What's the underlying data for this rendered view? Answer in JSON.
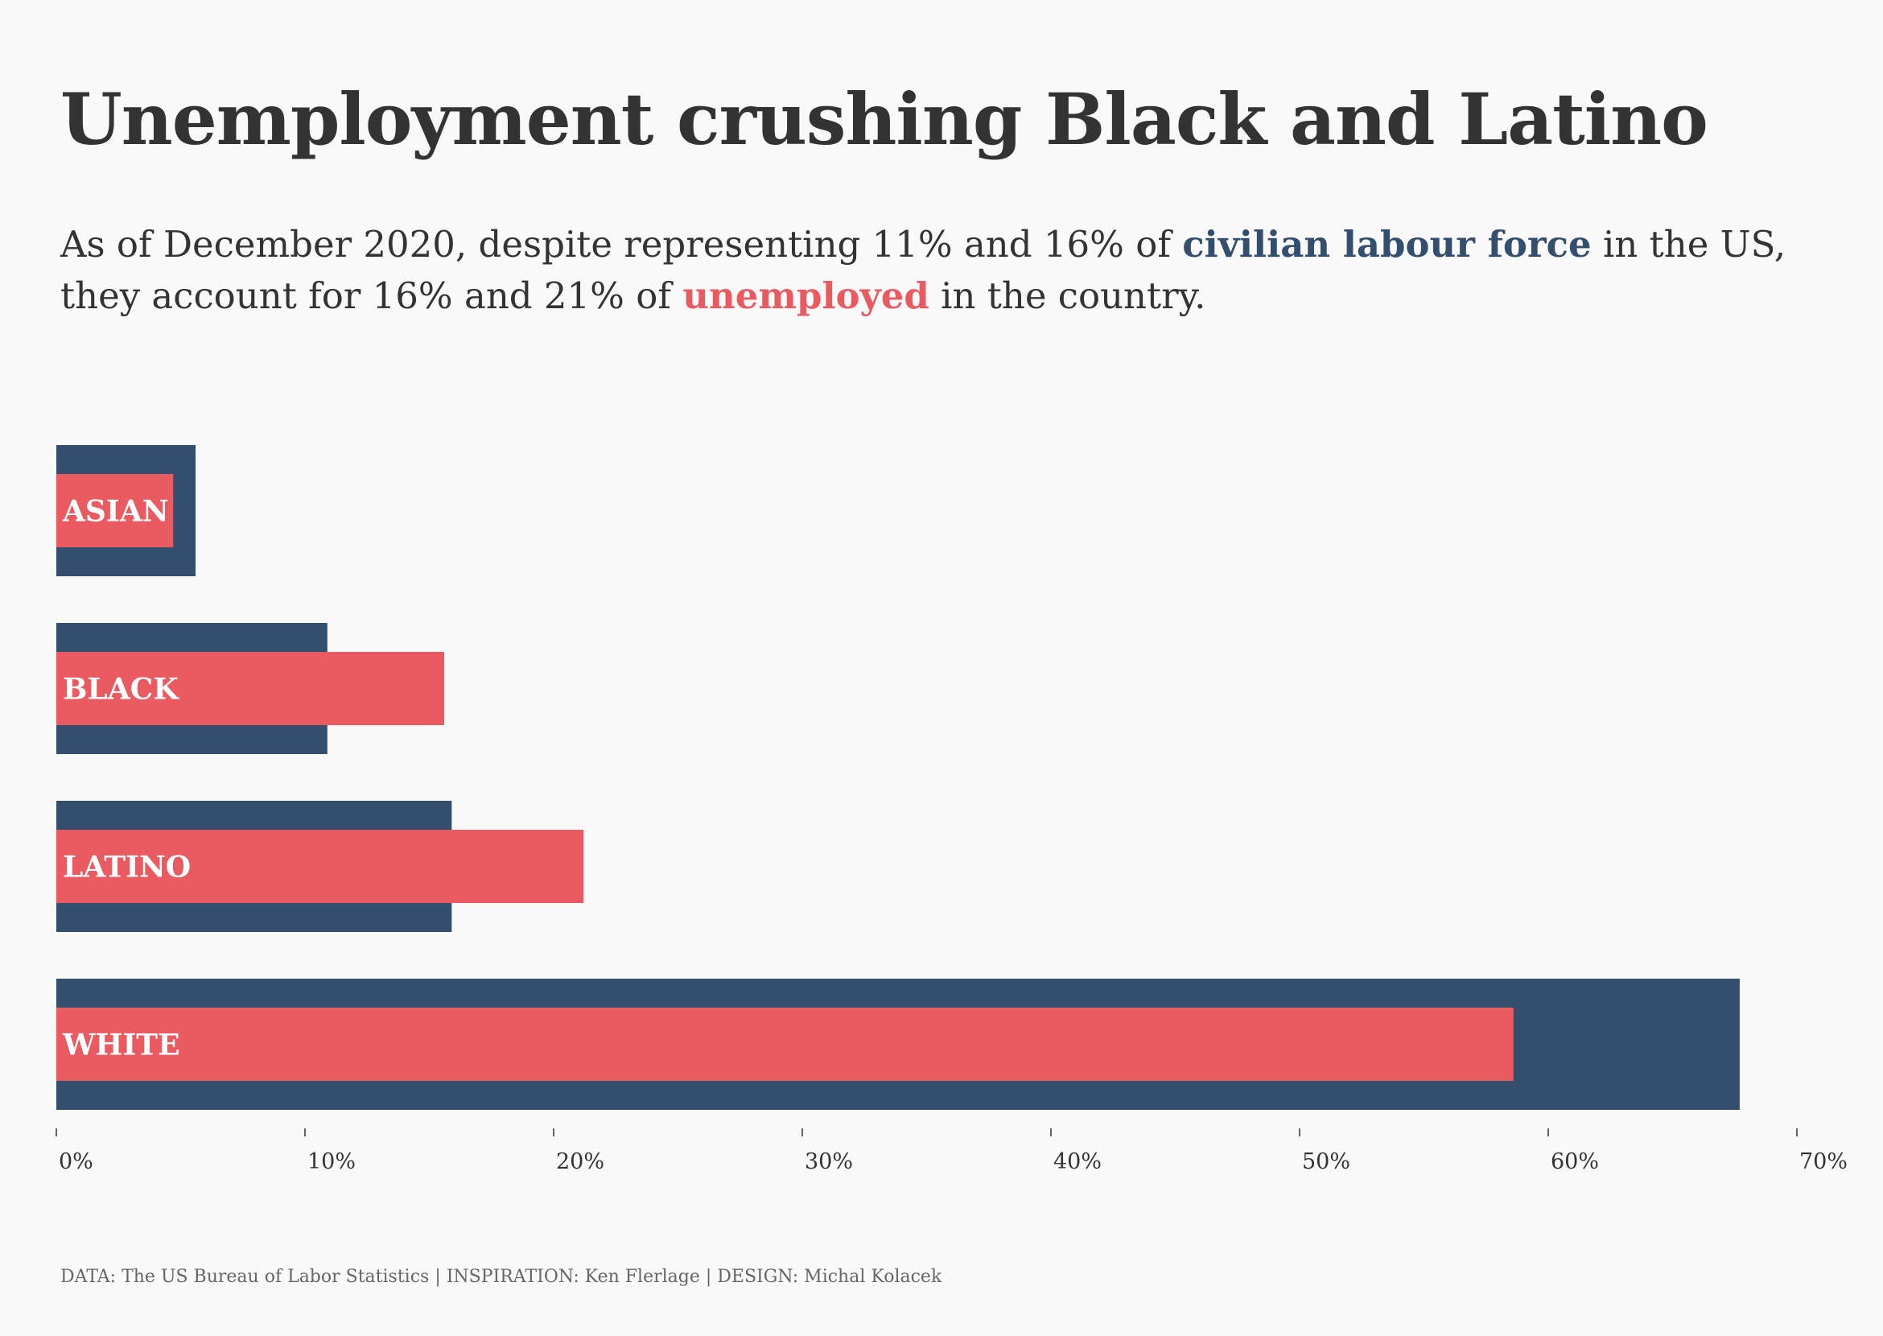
{
  "title": "Unemployment crushing Black and Latino",
  "subtitle": {
    "part1": "As of December 2020, despite representing 11% and 16% of ",
    "highlight1": "civilian labour force",
    "part2": " in the US, they account for 16% and 21% of ",
    "highlight2": "unemployed",
    "part3": " in the country."
  },
  "colors": {
    "background": "#f9f9f9",
    "labour_force": "#344f6d",
    "unemployed": "#e95b60",
    "text": "#333333",
    "footer_text": "#666666"
  },
  "footer": "DATA: The US Bureau of Labor Statistics | INSPIRATION: Ken Flerlage | DESIGN: Michal Kolacek",
  "chart_data": {
    "type": "bar",
    "orientation": "horizontal",
    "categories": [
      "ASIAN",
      "BLACK",
      "LATINO",
      "WHITE"
    ],
    "series": [
      {
        "name": "civilian labour force",
        "color": "#344f6d",
        "values": [
          5.6,
          10.9,
          15.9,
          67.7
        ]
      },
      {
        "name": "unemployed",
        "color": "#e95b60",
        "values": [
          4.7,
          15.6,
          21.2,
          58.6
        ]
      }
    ],
    "xlim": [
      0,
      70
    ],
    "xticks": [
      0,
      10,
      20,
      30,
      40,
      50,
      60,
      70
    ],
    "tick_labels": [
      "0%",
      "10%",
      "20%",
      "30%",
      "40%",
      "50%",
      "60%",
      "70%"
    ],
    "xlabel": "",
    "ylabel": "",
    "grid": false
  }
}
